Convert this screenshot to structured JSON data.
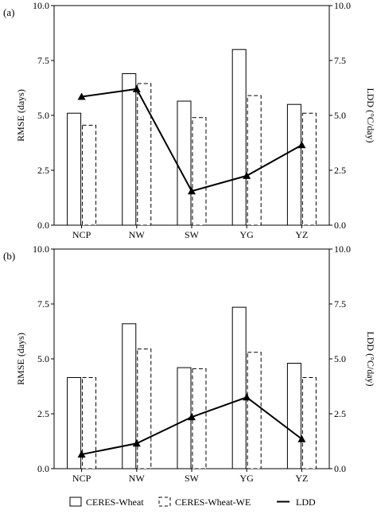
{
  "legend": {
    "ceres": "CERES-Wheat",
    "ceres_we": "CERES-Wheat-WE",
    "ldd": "LDD"
  },
  "chart_data": [
    {
      "type": "bar",
      "panel_label": "(a)",
      "categories": [
        "NCP",
        "NW",
        "SW",
        "YG",
        "YZ"
      ],
      "ylabel": "RMSE (days)",
      "y2label": "LDD (°C/day)",
      "ylim": [
        0,
        10
      ],
      "y2lim": [
        0,
        10
      ],
      "yticks": [
        "0.0",
        "2.5",
        "5.0",
        "7.5",
        "10.0"
      ],
      "y2ticks": [
        "0.0",
        "2.5",
        "5.0",
        "7.5",
        "10.0"
      ],
      "grid": false,
      "legend_position": "bottom",
      "series": [
        {
          "name": "CERES-Wheat",
          "kind": "bar",
          "style": "solid",
          "values": [
            5.1,
            6.9,
            5.65,
            8.0,
            5.5
          ]
        },
        {
          "name": "CERES-Wheat-WE",
          "kind": "bar",
          "style": "dashed",
          "values": [
            4.55,
            6.45,
            4.9,
            5.9,
            5.1
          ]
        },
        {
          "name": "LDD",
          "kind": "line",
          "axis": "right",
          "marker": "triangle",
          "values": [
            5.85,
            6.2,
            1.55,
            2.25,
            3.65
          ]
        }
      ]
    },
    {
      "type": "bar",
      "panel_label": "(b)",
      "categories": [
        "NCP",
        "NW",
        "SW",
        "YG",
        "YZ"
      ],
      "ylabel": "RMSE (days)",
      "y2label": "LDD (°C/day)",
      "ylim": [
        0,
        10
      ],
      "y2lim": [
        0,
        10
      ],
      "yticks": [
        "0.0",
        "2.5",
        "5.0",
        "7.5",
        "10.0"
      ],
      "y2ticks": [
        "0.0",
        "2.5",
        "5.0",
        "7.5",
        "10.0"
      ],
      "grid": false,
      "legend_position": "bottom",
      "series": [
        {
          "name": "CERES-Wheat",
          "kind": "bar",
          "style": "solid",
          "values": [
            4.15,
            6.6,
            4.6,
            7.35,
            4.8
          ]
        },
        {
          "name": "CERES-Wheat-WE",
          "kind": "bar",
          "style": "dashed",
          "values": [
            4.15,
            5.45,
            4.55,
            5.3,
            4.15
          ]
        },
        {
          "name": "LDD",
          "kind": "line",
          "axis": "right",
          "marker": "triangle",
          "values": [
            0.65,
            1.15,
            2.35,
            3.25,
            1.35
          ]
        }
      ]
    }
  ]
}
